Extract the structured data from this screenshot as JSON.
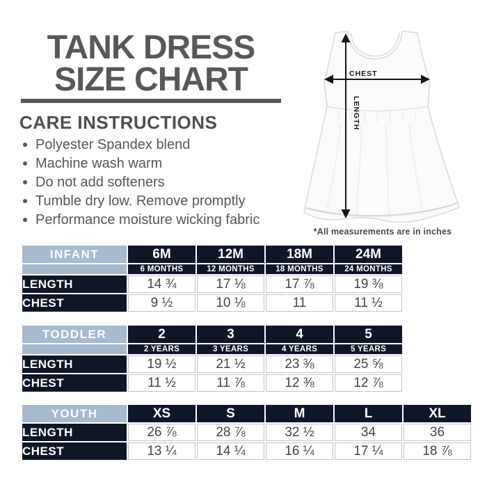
{
  "title": {
    "line1": "TANK DRESS",
    "line2": "SIZE CHART"
  },
  "care": {
    "heading": "CARE INSTRUCTIONS",
    "items": [
      "Polyester Spandex blend",
      "Machine wash warm",
      "Do not add softeners",
      "Tumble dry low. Remove promptly",
      "Performance moisture wicking fabric"
    ]
  },
  "diagram": {
    "chest_label": "CHEST",
    "length_label": "LENGTH",
    "note": "*All measurements are in inches"
  },
  "tables": [
    {
      "id": "infant",
      "name": "INFANT",
      "columns": [
        "6M",
        "12M",
        "18M",
        "24M"
      ],
      "subcolumns": [
        "6 MONTHS",
        "12 MONTHS",
        "18 MONTHS",
        "24 MONTHS"
      ],
      "rows": [
        {
          "label": "LENGTH",
          "values": [
            "14 ¾",
            "17 ⅛",
            "17 ⅞",
            "19 ⅜"
          ]
        },
        {
          "label": "CHEST",
          "values": [
            "9 ½",
            "10 ⅛",
            "11",
            "11 ½"
          ]
        }
      ]
    },
    {
      "id": "toddler",
      "name": "TODDLER",
      "columns": [
        "2",
        "3",
        "4",
        "5"
      ],
      "subcolumns": [
        "2 YEARS",
        "3 YEARS",
        "4 YEARS",
        "5 YEARS"
      ],
      "rows": [
        {
          "label": "LENGTH",
          "values": [
            "19 ½",
            "21 ½",
            "23 ⅜",
            "25 ⅝"
          ]
        },
        {
          "label": "CHEST",
          "values": [
            "11 ½",
            "11 ⅞",
            "12 ⅜",
            "12 ⅞"
          ]
        }
      ]
    },
    {
      "id": "youth",
      "name": "YOUTH",
      "columns": [
        "XS",
        "S",
        "M",
        "L",
        "XL"
      ],
      "rows": [
        {
          "label": "LENGTH",
          "values": [
            "26 ⅞",
            "28 ⅞",
            "32 ½",
            "34",
            "36"
          ]
        },
        {
          "label": "CHEST",
          "values": [
            "13 ¼",
            "14 ¼",
            "16 ¼",
            "17 ¼",
            "18 ⅞"
          ]
        }
      ]
    }
  ],
  "colors": {
    "title_gray": "#58585a",
    "navy": "#0e1627",
    "light_blue": "#a6bacf",
    "value_text": "#454548",
    "arrow_black": "#161616"
  }
}
